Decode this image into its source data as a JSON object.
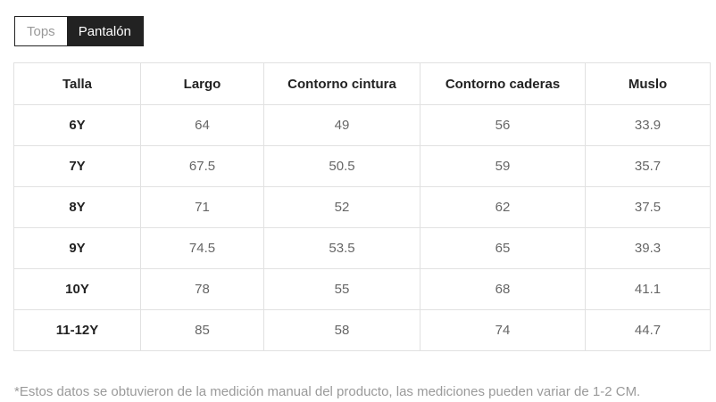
{
  "tabs": [
    {
      "label": "Tops",
      "active": false
    },
    {
      "label": "Pantalón",
      "active": true
    }
  ],
  "table": {
    "columns": [
      "Talla",
      "Largo",
      "Contorno cintura",
      "Contorno caderas",
      "Muslo"
    ],
    "rows": [
      {
        "talla": "6Y",
        "values": [
          "64",
          "49",
          "56",
          "33.9"
        ]
      },
      {
        "talla": "7Y",
        "values": [
          "67.5",
          "50.5",
          "59",
          "35.7"
        ]
      },
      {
        "talla": "8Y",
        "values": [
          "71",
          "52",
          "62",
          "37.5"
        ]
      },
      {
        "talla": "9Y",
        "values": [
          "74.5",
          "53.5",
          "65",
          "39.3"
        ]
      },
      {
        "talla": "10Y",
        "values": [
          "78",
          "55",
          "68",
          "41.1"
        ]
      },
      {
        "talla": "11-12Y",
        "values": [
          "85",
          "58",
          "74",
          "44.7"
        ]
      }
    ]
  },
  "footnote": "*Estos datos se obtuvieron de la medición manual del producto, las mediciones pueden variar de 1-2 CM.",
  "colors": {
    "tab_active_bg": "#222222",
    "tab_active_text": "#ffffff",
    "tab_inactive_text": "#999999",
    "table_border": "#e1e1e1",
    "header_text": "#222222",
    "cell_text": "#666666",
    "footnote_text": "#9a9a9a"
  }
}
